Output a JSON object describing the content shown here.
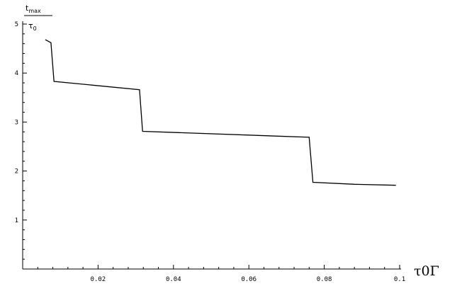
{
  "chart_data": {
    "type": "line",
    "xlabel": "τ0Γ",
    "ylabel": {
      "numerator_main": "t",
      "numerator_sub": "max",
      "denominator_main": "τ",
      "denominator_sub": "0"
    },
    "xlim": [
      0.0,
      0.1
    ],
    "ylim": [
      0,
      5
    ],
    "x_ticks": [
      0.02,
      0.04,
      0.06,
      0.08,
      0.1
    ],
    "x_tick_labels": [
      "0.02",
      "0.04",
      "0.06",
      "0.08",
      "0.1"
    ],
    "y_ticks": [
      1,
      2,
      3,
      4,
      5
    ],
    "y_tick_labels": [
      "1",
      "2",
      "3",
      "4",
      "5"
    ],
    "grid": false,
    "series": [
      {
        "color": "#000000",
        "x": [
          0.006,
          0.0075,
          0.0083,
          0.031,
          0.0318,
          0.076,
          0.077,
          0.088,
          0.099
        ],
        "y": [
          4.68,
          4.62,
          3.83,
          3.66,
          2.81,
          2.69,
          1.77,
          1.73,
          1.71
        ]
      }
    ]
  }
}
